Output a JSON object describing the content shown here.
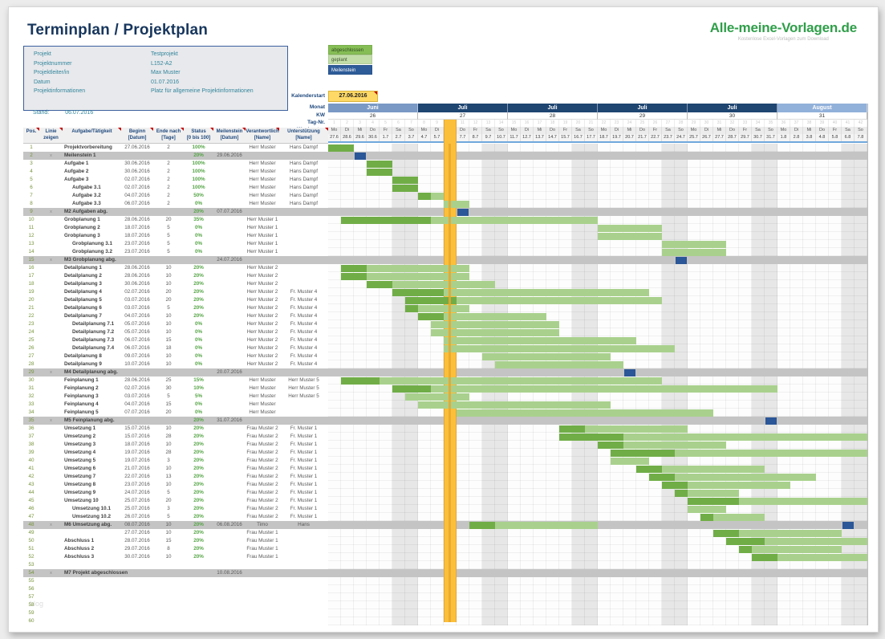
{
  "page": {
    "title": "Terminplan / Projektplan"
  },
  "logo": {
    "text": "Alle-meine-Vorlagen.de",
    "subtitle": "Kostenlose Excel-Vorlagen zum Download"
  },
  "info_box": {
    "rows": [
      {
        "label": "Projekt",
        "value": "Testprojekt"
      },
      {
        "label": "Projektnummer",
        "value": "L152-A2"
      },
      {
        "label": "Projektleiter/in",
        "value": "Max Muster"
      },
      {
        "label": "Datum",
        "value": "01.07.2016"
      },
      {
        "label": "Projektinformationen",
        "value": "Platz für allgemeine Projektinformationen"
      }
    ]
  },
  "stand": {
    "label": "Stand:",
    "value": "06.07.2016"
  },
  "legend": [
    {
      "label": "abgeschlossen",
      "bg": "#86be55",
      "fg": "#2d4a1e"
    },
    {
      "label": "geplant",
      "bg": "#c2dda8",
      "fg": "#3f5531"
    },
    {
      "label": "Meilenstein",
      "bg": "#2e5c99",
      "fg": "#ffffff"
    }
  ],
  "calendar": {
    "start_label": "Kalenderstart",
    "start_value": "27.06.2016",
    "row_labels": [
      "Monat",
      "KW",
      "Tag-Nr.",
      "Wochentag"
    ],
    "weeks": [
      {
        "month": "Juni",
        "kw": "26",
        "tone": "medium"
      },
      {
        "month": "Juli",
        "kw": "27",
        "tone": "dark"
      },
      {
        "month": "Juli",
        "kw": "28",
        "tone": "dark"
      },
      {
        "month": "Juli",
        "kw": "29",
        "tone": "dark"
      },
      {
        "month": "Juli",
        "kw": "30",
        "tone": "dark"
      },
      {
        "month": "August",
        "kw": "31",
        "tone": "light"
      }
    ],
    "month_tones": {
      "dark": "#1f4571",
      "medium": "#7a99c5",
      "light": "#92b1da"
    },
    "weekdays": [
      "Mo",
      "Di",
      "Mi",
      "Do",
      "Fr",
      "Sa",
      "So"
    ],
    "dates": [
      "27.6",
      "28.6",
      "29.6",
      "30.6",
      "1.7",
      "2.7",
      "3.7",
      "4.7",
      "5.7",
      "6.7",
      "7.7",
      "8.7",
      "9.7",
      "10.7",
      "11.7",
      "12.7",
      "13.7",
      "14.7",
      "15.7",
      "16.7",
      "17.7",
      "18.7",
      "19.7",
      "20.7",
      "21.7",
      "22.7",
      "23.7",
      "24.7",
      "25.7",
      "26.7",
      "27.7",
      "28.7",
      "29.7",
      "30.7",
      "31.7",
      "1.8",
      "2.8",
      "3.8",
      "4.8",
      "5.8",
      "6.8",
      "7.8"
    ],
    "today_index": 9
  },
  "table": {
    "headers": [
      {
        "l1": "Pos.",
        "l2": ""
      },
      {
        "l1": "Linie",
        "l2": "zeigen"
      },
      {
        "l1": "Aufgabe/Tätigkeit",
        "l2": ""
      },
      {
        "l1": "Beginn",
        "l2": "[Datum]"
      },
      {
        "l1": "Ende nach",
        "l2": "[Tage]"
      },
      {
        "l1": "Status",
        "l2": "[0 bis 100]"
      },
      {
        "l1": "Meilenstein",
        "l2": "[Datum]"
      },
      {
        "l1": "Verantwortlich",
        "l2": "[Name]"
      },
      {
        "l1": "Unterstützung",
        "l2": "[Name]"
      }
    ]
  },
  "rows": [
    {
      "pos": "1",
      "name": "Projektvorbereitung",
      "type": "task",
      "lvl": 0,
      "begin": "27.06.2016",
      "dur": "2",
      "status": "100%",
      "ms": "",
      "resp": "Herr Muster",
      "supp": "Hans Dampf"
    },
    {
      "pos": "2",
      "name": "Meilenstein 1",
      "type": "ms",
      "lvl": 0,
      "linie": "x",
      "begin": "",
      "dur": "",
      "status": "20%",
      "ms": "29.06.2016",
      "resp": "",
      "supp": ""
    },
    {
      "pos": "3",
      "name": "Aufgabe 1",
      "type": "task",
      "lvl": 0,
      "begin": "30.06.2016",
      "dur": "2",
      "status": "100%",
      "ms": "",
      "resp": "Herr Muster",
      "supp": "Hans Dampf"
    },
    {
      "pos": "4",
      "name": "Aufgabe 2",
      "type": "task",
      "lvl": 0,
      "begin": "30.06.2016",
      "dur": "2",
      "status": "100%",
      "ms": "",
      "resp": "Herr Muster",
      "supp": "Hans Dampf"
    },
    {
      "pos": "5",
      "name": "Aufgabe 3",
      "type": "task",
      "lvl": 0,
      "begin": "02.07.2016",
      "dur": "2",
      "status": "100%",
      "ms": "",
      "resp": "Herr Muster",
      "supp": "Hans Dampf"
    },
    {
      "pos": "6",
      "name": "Aufgabe 3.1",
      "type": "task",
      "lvl": 1,
      "begin": "02.07.2016",
      "dur": "2",
      "status": "100%",
      "ms": "",
      "resp": "Herr Muster",
      "supp": "Hans Dampf"
    },
    {
      "pos": "7",
      "name": "Aufgabe 3.2",
      "type": "task",
      "lvl": 1,
      "begin": "04.07.2016",
      "dur": "2",
      "status": "50%",
      "ms": "",
      "resp": "Herr Muster",
      "supp": "Hans Dampf"
    },
    {
      "pos": "8",
      "name": "Aufgabe 3.3",
      "type": "task",
      "lvl": 1,
      "begin": "06.07.2016",
      "dur": "2",
      "status": "0%",
      "ms": "",
      "resp": "Herr Muster",
      "supp": "Hans Dampf"
    },
    {
      "pos": "9",
      "name": "M2 Aufgaben abg.",
      "type": "ms",
      "lvl": 0,
      "linie": "x",
      "begin": "",
      "dur": "",
      "status": "20%",
      "ms": "07.07.2016",
      "resp": "",
      "supp": ""
    },
    {
      "pos": "10",
      "name": "Grobplanung 1",
      "type": "task",
      "lvl": 0,
      "begin": "28.06.2016",
      "dur": "20",
      "status": "35%",
      "ms": "",
      "resp": "Herr Muster 1",
      "supp": ""
    },
    {
      "pos": "11",
      "name": "Grobplanung 2",
      "type": "task",
      "lvl": 0,
      "begin": "18.07.2016",
      "dur": "5",
      "status": "0%",
      "ms": "",
      "resp": "Herr Muster 1",
      "supp": ""
    },
    {
      "pos": "12",
      "name": "Grobplanung 3",
      "type": "task",
      "lvl": 0,
      "begin": "18.07.2016",
      "dur": "5",
      "status": "0%",
      "ms": "",
      "resp": "Herr Muster 1",
      "supp": ""
    },
    {
      "pos": "13",
      "name": "Grobplanung 3.1",
      "type": "task",
      "lvl": 1,
      "begin": "23.07.2016",
      "dur": "5",
      "status": "0%",
      "ms": "",
      "resp": "Herr Muster 1",
      "supp": ""
    },
    {
      "pos": "14",
      "name": "Grobplanung 3.2",
      "type": "task",
      "lvl": 1,
      "begin": "23.07.2016",
      "dur": "5",
      "status": "0%",
      "ms": "",
      "resp": "Herr Muster 1",
      "supp": ""
    },
    {
      "pos": "15",
      "name": "M3 Grobplanung abg.",
      "type": "ms",
      "lvl": 0,
      "linie": "x",
      "begin": "",
      "dur": "",
      "status": "",
      "ms": "24.07.2016",
      "resp": "",
      "supp": ""
    },
    {
      "pos": "16",
      "name": "Detailplanung 1",
      "type": "task",
      "lvl": 0,
      "begin": "28.06.2016",
      "dur": "10",
      "status": "20%",
      "ms": "",
      "resp": "Herr Muster 2",
      "supp": ""
    },
    {
      "pos": "17",
      "name": "Detailplanung 2",
      "type": "task",
      "lvl": 0,
      "begin": "28.06.2016",
      "dur": "10",
      "status": "20%",
      "ms": "",
      "resp": "Herr Muster 2",
      "supp": ""
    },
    {
      "pos": "18",
      "name": "Detailplanung 3",
      "type": "task",
      "lvl": 0,
      "begin": "30.06.2016",
      "dur": "10",
      "status": "20%",
      "ms": "",
      "resp": "Herr Muster 2",
      "supp": ""
    },
    {
      "pos": "19",
      "name": "Detailplanung 4",
      "type": "task",
      "lvl": 0,
      "begin": "02.07.2016",
      "dur": "20",
      "status": "20%",
      "ms": "",
      "resp": "Herr Muster 2",
      "supp": "Fr. Muster 4"
    },
    {
      "pos": "20",
      "name": "Detailplanung 5",
      "type": "task",
      "lvl": 0,
      "begin": "03.07.2016",
      "dur": "20",
      "status": "20%",
      "ms": "",
      "resp": "Herr Muster 2",
      "supp": "Fr. Muster 4"
    },
    {
      "pos": "21",
      "name": "Detailplanung 6",
      "type": "task",
      "lvl": 0,
      "begin": "03.07.2016",
      "dur": "5",
      "status": "20%",
      "ms": "",
      "resp": "Herr Muster 2",
      "supp": "Fr. Muster 4"
    },
    {
      "pos": "22",
      "name": "Detailplanung 7",
      "type": "task",
      "lvl": 0,
      "begin": "04.07.2016",
      "dur": "10",
      "status": "20%",
      "ms": "",
      "resp": "Herr Muster 2",
      "supp": "Fr. Muster 4"
    },
    {
      "pos": "23",
      "name": "Detailplanung 7.1",
      "type": "task",
      "lvl": 1,
      "begin": "05.07.2016",
      "dur": "10",
      "status": "0%",
      "ms": "",
      "resp": "Herr Muster 2",
      "supp": "Fr. Muster 4"
    },
    {
      "pos": "24",
      "name": "Detailplanung 7.2",
      "type": "task",
      "lvl": 1,
      "begin": "05.07.2016",
      "dur": "10",
      "status": "0%",
      "ms": "",
      "resp": "Herr Muster 2",
      "supp": "Fr. Muster 4"
    },
    {
      "pos": "25",
      "name": "Detailplanung 7.3",
      "type": "task",
      "lvl": 1,
      "begin": "06.07.2016",
      "dur": "15",
      "status": "0%",
      "ms": "",
      "resp": "Herr Muster 2",
      "supp": "Fr. Muster 4"
    },
    {
      "pos": "26",
      "name": "Detailplanung 7.4",
      "type": "task",
      "lvl": 1,
      "begin": "06.07.2016",
      "dur": "18",
      "status": "0%",
      "ms": "",
      "resp": "Herr Muster 2",
      "supp": "Fr. Muster 4"
    },
    {
      "pos": "27",
      "name": "Detailplanung 8",
      "type": "task",
      "lvl": 0,
      "begin": "09.07.2016",
      "dur": "10",
      "status": "0%",
      "ms": "",
      "resp": "Herr Muster 2",
      "supp": "Fr. Muster 4"
    },
    {
      "pos": "28",
      "name": "Detailplanung 9",
      "type": "task",
      "lvl": 0,
      "begin": "10.07.2016",
      "dur": "10",
      "status": "0%",
      "ms": "",
      "resp": "Herr Muster 2",
      "supp": "Fr. Muster 4"
    },
    {
      "pos": "29",
      "name": "M4 Detailplanung abg.",
      "type": "ms",
      "lvl": 0,
      "linie": "x",
      "begin": "",
      "dur": "",
      "status": "",
      "ms": "20.07.2016",
      "resp": "",
      "supp": ""
    },
    {
      "pos": "30",
      "name": "Feinplanung 1",
      "type": "task",
      "lvl": 0,
      "begin": "28.06.2016",
      "dur": "25",
      "status": "15%",
      "ms": "",
      "resp": "Herr Muster",
      "supp": "Herr Muster 5"
    },
    {
      "pos": "31",
      "name": "Feinplanung 2",
      "type": "task",
      "lvl": 0,
      "begin": "02.07.2016",
      "dur": "30",
      "status": "10%",
      "ms": "",
      "resp": "Herr Muster",
      "supp": "Herr Muster 5"
    },
    {
      "pos": "32",
      "name": "Feinplanung 3",
      "type": "task",
      "lvl": 0,
      "begin": "03.07.2016",
      "dur": "5",
      "status": "5%",
      "ms": "",
      "resp": "Herr Muster",
      "supp": "Herr Muster 5"
    },
    {
      "pos": "33",
      "name": "Feinplanung 4",
      "type": "task",
      "lvl": 0,
      "begin": "04.07.2016",
      "dur": "15",
      "status": "0%",
      "ms": "",
      "resp": "Herr Muster",
      "supp": ""
    },
    {
      "pos": "34",
      "name": "Feinplanung 5",
      "type": "task",
      "lvl": 0,
      "begin": "07.07.2016",
      "dur": "20",
      "status": "0%",
      "ms": "",
      "resp": "Herr Muster",
      "supp": ""
    },
    {
      "pos": "35",
      "name": "M5 Feinplanung abg.",
      "type": "ms",
      "lvl": 0,
      "linie": "x",
      "begin": "",
      "dur": "",
      "status": "20%",
      "ms": "31.07.2016",
      "resp": "",
      "supp": ""
    },
    {
      "pos": "36",
      "name": "Umsetzung 1",
      "type": "task",
      "lvl": 0,
      "begin": "15.07.2016",
      "dur": "10",
      "status": "20%",
      "ms": "",
      "resp": "Frau Muster 2",
      "supp": "Fr. Muster 1"
    },
    {
      "pos": "37",
      "name": "Umsetzung 2",
      "type": "task",
      "lvl": 0,
      "begin": "15.07.2016",
      "dur": "28",
      "status": "20%",
      "ms": "",
      "resp": "Frau Muster 2",
      "supp": "Fr. Muster 1"
    },
    {
      "pos": "38",
      "name": "Umsetzung 3",
      "type": "task",
      "lvl": 0,
      "begin": "18.07.2016",
      "dur": "10",
      "status": "20%",
      "ms": "",
      "resp": "Frau Muster 2",
      "supp": "Fr. Muster 1"
    },
    {
      "pos": "39",
      "name": "Umsetzung 4",
      "type": "task",
      "lvl": 0,
      "begin": "19.07.2016",
      "dur": "28",
      "status": "20%",
      "ms": "",
      "resp": "Frau Muster 2",
      "supp": "Fr. Muster 1"
    },
    {
      "pos": "40",
      "name": "Umsetzung 5",
      "type": "task",
      "lvl": 0,
      "begin": "19.07.2016",
      "dur": "3",
      "status": "20%",
      "ms": "",
      "resp": "Frau Muster 2",
      "supp": "Fr. Muster 1"
    },
    {
      "pos": "41",
      "name": "Umsetzung 6",
      "type": "task",
      "lvl": 0,
      "begin": "21.07.2016",
      "dur": "10",
      "status": "20%",
      "ms": "",
      "resp": "Frau Muster 2",
      "supp": "Fr. Muster 1"
    },
    {
      "pos": "42",
      "name": "Umsetzung 7",
      "type": "task",
      "lvl": 0,
      "begin": "22.07.2016",
      "dur": "13",
      "status": "20%",
      "ms": "",
      "resp": "Frau Muster 2",
      "supp": "Fr. Muster 1"
    },
    {
      "pos": "43",
      "name": "Umsetzung 8",
      "type": "task",
      "lvl": 0,
      "begin": "23.07.2016",
      "dur": "10",
      "status": "20%",
      "ms": "",
      "resp": "Frau Muster 2",
      "supp": "Fr. Muster 1"
    },
    {
      "pos": "44",
      "name": "Umsetzung 9",
      "type": "task",
      "lvl": 0,
      "begin": "24.07.2016",
      "dur": "5",
      "status": "20%",
      "ms": "",
      "resp": "Frau Muster 2",
      "supp": "Fr. Muster 1"
    },
    {
      "pos": "45",
      "name": "Umsetzung 10",
      "type": "task",
      "lvl": 0,
      "begin": "25.07.2016",
      "dur": "20",
      "status": "20%",
      "ms": "",
      "resp": "Frau Muster 2",
      "supp": "Fr. Muster 1"
    },
    {
      "pos": "46",
      "name": "Umsetzung 10.1",
      "type": "task",
      "lvl": 1,
      "begin": "25.07.2016",
      "dur": "3",
      "status": "20%",
      "ms": "",
      "resp": "Frau Muster 2",
      "supp": "Fr. Muster 1"
    },
    {
      "pos": "47",
      "name": "Umsetzung 10.2",
      "type": "task",
      "lvl": 1,
      "begin": "26.07.2016",
      "dur": "5",
      "status": "20%",
      "ms": "",
      "resp": "Frau Muster 2",
      "supp": "Fr. Muster 1"
    },
    {
      "pos": "48",
      "name": "M6 Umsetzung abg.",
      "type": "ms",
      "lvl": 0,
      "linie": "x",
      "begin": "08.07.2016",
      "dur": "10",
      "status": "20%",
      "ms": "06.08.2016",
      "resp": "Timo",
      "supp": "Hans"
    },
    {
      "pos": "49",
      "name": "",
      "type": "task",
      "lvl": 0,
      "begin": "27.07.2016",
      "dur": "10",
      "status": "20%",
      "ms": "",
      "resp": "Frau Muster 1",
      "supp": ""
    },
    {
      "pos": "50",
      "name": "Abschluss 1",
      "type": "task",
      "lvl": 0,
      "begin": "28.07.2016",
      "dur": "15",
      "status": "20%",
      "ms": "",
      "resp": "Frau Muster 1",
      "supp": ""
    },
    {
      "pos": "51",
      "name": "Abschluss 2",
      "type": "task",
      "lvl": 0,
      "begin": "29.07.2016",
      "dur": "8",
      "status": "20%",
      "ms": "",
      "resp": "Frau Muster 1",
      "supp": ""
    },
    {
      "pos": "52",
      "name": "Abschluss 3",
      "type": "task",
      "lvl": 0,
      "begin": "30.07.2016",
      "dur": "10",
      "status": "20%",
      "ms": "",
      "resp": "Frau Muster 1",
      "supp": ""
    },
    {
      "pos": "53",
      "name": "",
      "type": "empty"
    },
    {
      "pos": "54",
      "name": "M7 Projekt abgeschlossen",
      "type": "ms",
      "lvl": 0,
      "linie": "x",
      "begin": "",
      "dur": "",
      "status": "",
      "ms": "10.08.2016",
      "resp": "",
      "supp": ""
    },
    {
      "pos": "55",
      "name": "",
      "type": "empty"
    },
    {
      "pos": "56",
      "name": "",
      "type": "empty"
    },
    {
      "pos": "57",
      "name": "",
      "type": "empty"
    },
    {
      "pos": "58",
      "name": "",
      "type": "empty"
    },
    {
      "pos": "59",
      "name": "",
      "type": "empty"
    },
    {
      "pos": "60",
      "name": "",
      "type": "empty"
    }
  ],
  "watermark": "blog",
  "colors": {
    "bar_done": "#70ad47",
    "bar_planned": "#a9d18d",
    "milestone_square": "#2b5697",
    "milestone_row": "#c4c4c4",
    "today_band": "#fbbf3a",
    "title_blue": "#17365d",
    "header_blue": "#1f497d",
    "info_teal": "#31859c",
    "logo_green": "#2f9e49",
    "calendar_start_bg": "#ffd966"
  }
}
